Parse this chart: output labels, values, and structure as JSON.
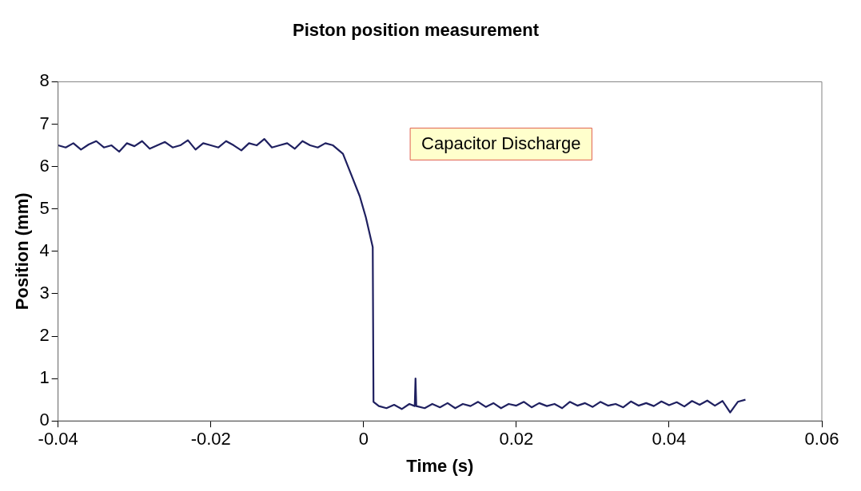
{
  "chart_data": {
    "type": "line",
    "title": "Piston position measurement",
    "xlabel": "Time (s)",
    "ylabel": "Position (mm)",
    "annotations": [
      "Capacitor Discharge"
    ],
    "x": [
      -0.04,
      -0.039,
      -0.038,
      -0.037,
      -0.036,
      -0.035,
      -0.034,
      -0.033,
      -0.032,
      -0.031,
      -0.03,
      -0.029,
      -0.028,
      -0.027,
      -0.026,
      -0.025,
      -0.024,
      -0.023,
      -0.022,
      -0.021,
      -0.02,
      -0.019,
      -0.018,
      -0.017,
      -0.016,
      -0.015,
      -0.014,
      -0.013,
      -0.012,
      -0.011,
      -0.01,
      -0.009,
      -0.008,
      -0.007,
      -0.006,
      -0.005,
      -0.004,
      -0.0027,
      -0.0016,
      -0.0005,
      0.0003,
      0.0012,
      0.0013,
      0.002,
      0.003,
      0.004,
      0.005,
      0.006,
      0.0067,
      0.0068,
      0.0069,
      0.008,
      0.009,
      0.01,
      0.011,
      0.012,
      0.013,
      0.014,
      0.015,
      0.016,
      0.017,
      0.018,
      0.019,
      0.02,
      0.021,
      0.022,
      0.023,
      0.024,
      0.025,
      0.026,
      0.027,
      0.028,
      0.029,
      0.03,
      0.031,
      0.032,
      0.033,
      0.034,
      0.035,
      0.036,
      0.037,
      0.038,
      0.039,
      0.04,
      0.041,
      0.042,
      0.043,
      0.044,
      0.045,
      0.046,
      0.047,
      0.048,
      0.049,
      0.05
    ],
    "series": [
      {
        "color": "#1f2060",
        "values": [
          6.5,
          6.45,
          6.55,
          6.4,
          6.52,
          6.6,
          6.45,
          6.5,
          6.35,
          6.55,
          6.48,
          6.6,
          6.42,
          6.5,
          6.58,
          6.45,
          6.5,
          6.62,
          6.4,
          6.55,
          6.5,
          6.45,
          6.6,
          6.5,
          6.38,
          6.55,
          6.5,
          6.65,
          6.45,
          6.5,
          6.55,
          6.42,
          6.6,
          6.5,
          6.45,
          6.55,
          6.5,
          6.3,
          5.8,
          5.3,
          4.8,
          4.1,
          0.45,
          0.35,
          0.3,
          0.38,
          0.28,
          0.4,
          0.35,
          1.0,
          0.35,
          0.3,
          0.4,
          0.32,
          0.42,
          0.3,
          0.4,
          0.35,
          0.45,
          0.33,
          0.42,
          0.3,
          0.4,
          0.36,
          0.45,
          0.32,
          0.42,
          0.35,
          0.4,
          0.3,
          0.45,
          0.36,
          0.42,
          0.33,
          0.45,
          0.36,
          0.4,
          0.32,
          0.46,
          0.36,
          0.42,
          0.35,
          0.46,
          0.37,
          0.44,
          0.34,
          0.47,
          0.38,
          0.48,
          0.36,
          0.47,
          0.2,
          0.45,
          0.5
        ]
      }
    ],
    "xlim": [
      -0.04,
      0.06
    ],
    "xticks": [
      -0.04,
      -0.02,
      0,
      0.02,
      0.04,
      0.06
    ],
    "ylim": [
      0,
      8
    ],
    "yticks": [
      0,
      1,
      2,
      3,
      4,
      5,
      6,
      7,
      8
    ],
    "grid": false,
    "legend": false,
    "marker": "none",
    "line_style": "solid"
  }
}
